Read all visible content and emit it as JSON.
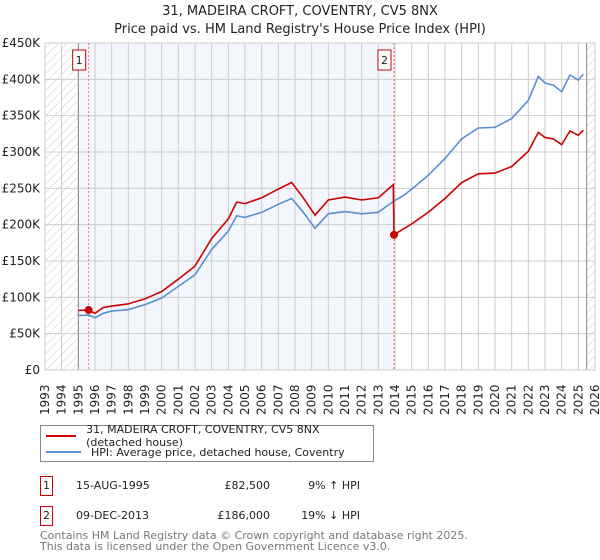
{
  "chart_data": {
    "type": "line",
    "title": "31, MADEIRA CROFT, COVENTRY, CV5 8NX",
    "subtitle": "Price paid vs. HM Land Registry's House Price Index (HPI)",
    "xlim": [
      1993,
      2026
    ],
    "ylim": [
      0,
      450000
    ],
    "x_ticks": [
      "1993",
      "1994",
      "1995",
      "1996",
      "1997",
      "1998",
      "1999",
      "2000",
      "2001",
      "2002",
      "2003",
      "2004",
      "2005",
      "2006",
      "2007",
      "2008",
      "2009",
      "2010",
      "2011",
      "2012",
      "2013",
      "2014",
      "2015",
      "2016",
      "2017",
      "2018",
      "2019",
      "2020",
      "2021",
      "2022",
      "2023",
      "2024",
      "2025",
      "2026"
    ],
    "y_ticks": [
      {
        "v": 0,
        "label": "£0"
      },
      {
        "v": 50000,
        "label": "£50K"
      },
      {
        "v": 100000,
        "label": "£100K"
      },
      {
        "v": 150000,
        "label": "£150K"
      },
      {
        "v": 200000,
        "label": "£200K"
      },
      {
        "v": 250000,
        "label": "£250K"
      },
      {
        "v": 300000,
        "label": "£300K"
      },
      {
        "v": 350000,
        "label": "£350K"
      },
      {
        "v": 400000,
        "label": "£400K"
      },
      {
        "v": 450000,
        "label": "£450K"
      }
    ],
    "grid": true,
    "series": [
      {
        "name": "31, MADEIRA CROFT, COVENTRY, CV5 8NX (detached house)",
        "color": "#cc0000",
        "x": [
          1995,
          1995.62,
          1996,
          1996.5,
          1997,
          1998,
          1999,
          2000,
          2001,
          2002,
          2003,
          2004,
          2004.5,
          2005,
          2006,
          2007,
          2007.8,
          2008.5,
          2009.2,
          2010,
          2011,
          2012,
          2013,
          2013.9,
          2013.94,
          2014.5,
          2015,
          2016,
          2017,
          2018,
          2019,
          2020,
          2021,
          2022,
          2022.6,
          2023,
          2023.5,
          2024,
          2024.5,
          2025,
          2025.3
        ],
        "y": [
          82000,
          82500,
          78000,
          86000,
          88000,
          91000,
          98000,
          108000,
          125000,
          143000,
          181000,
          208000,
          231000,
          229000,
          237000,
          249000,
          258000,
          237000,
          213000,
          234000,
          238000,
          234000,
          237000,
          255000,
          186000,
          194000,
          201000,
          217000,
          236000,
          258000,
          270000,
          271000,
          280000,
          301000,
          327000,
          320000,
          318000,
          310000,
          329000,
          323000,
          330000
        ]
      },
      {
        "name": "HPI: Average price, detached house, Coventry",
        "color": "#5b8fd0",
        "x": [
          1995,
          1995.62,
          1996,
          1996.5,
          1997,
          1998,
          1999,
          2000,
          2001,
          2002,
          2003,
          2004,
          2004.5,
          2005,
          2006,
          2007,
          2007.8,
          2008.5,
          2009.2,
          2010,
          2011,
          2012,
          2013,
          2013.9,
          2014.5,
          2015,
          2016,
          2017,
          2018,
          2019,
          2020,
          2021,
          2022,
          2022.6,
          2023,
          2023.5,
          2024,
          2024.5,
          2025,
          2025.3
        ],
        "y": [
          75000,
          75500,
          72000,
          78000,
          81000,
          83000,
          90000,
          99000,
          115000,
          131000,
          166000,
          191000,
          212000,
          210000,
          217000,
          228000,
          236000,
          217000,
          195000,
          215000,
          218000,
          215000,
          217000,
          232000,
          240000,
          249000,
          268000,
          291000,
          318000,
          333000,
          334000,
          346000,
          371000,
          404000,
          395000,
          392000,
          383000,
          406000,
          399000,
          407000
        ]
      }
    ],
    "annotations": [
      {
        "label": "1",
        "x": 1995.62,
        "y": 82500
      },
      {
        "label": "2",
        "x": 2013.94,
        "y": 186000
      }
    ]
  },
  "legend": {
    "items": [
      "31, MADEIRA CROFT, COVENTRY, CV5 8NX (detached house)",
      "HPI: Average price, detached house, Coventry"
    ]
  },
  "transactions": [
    {
      "num": "1",
      "date": "15-AUG-1995",
      "price": "£82,500",
      "hpi": "9% ↑ HPI"
    },
    {
      "num": "2",
      "date": "09-DEC-2013",
      "price": "£186,000",
      "hpi": "19% ↓ HPI"
    }
  ],
  "footer": [
    "Contains HM Land Registry data © Crown copyright and database right 2025.",
    "This data is licensed under the Open Government Licence v3.0."
  ]
}
